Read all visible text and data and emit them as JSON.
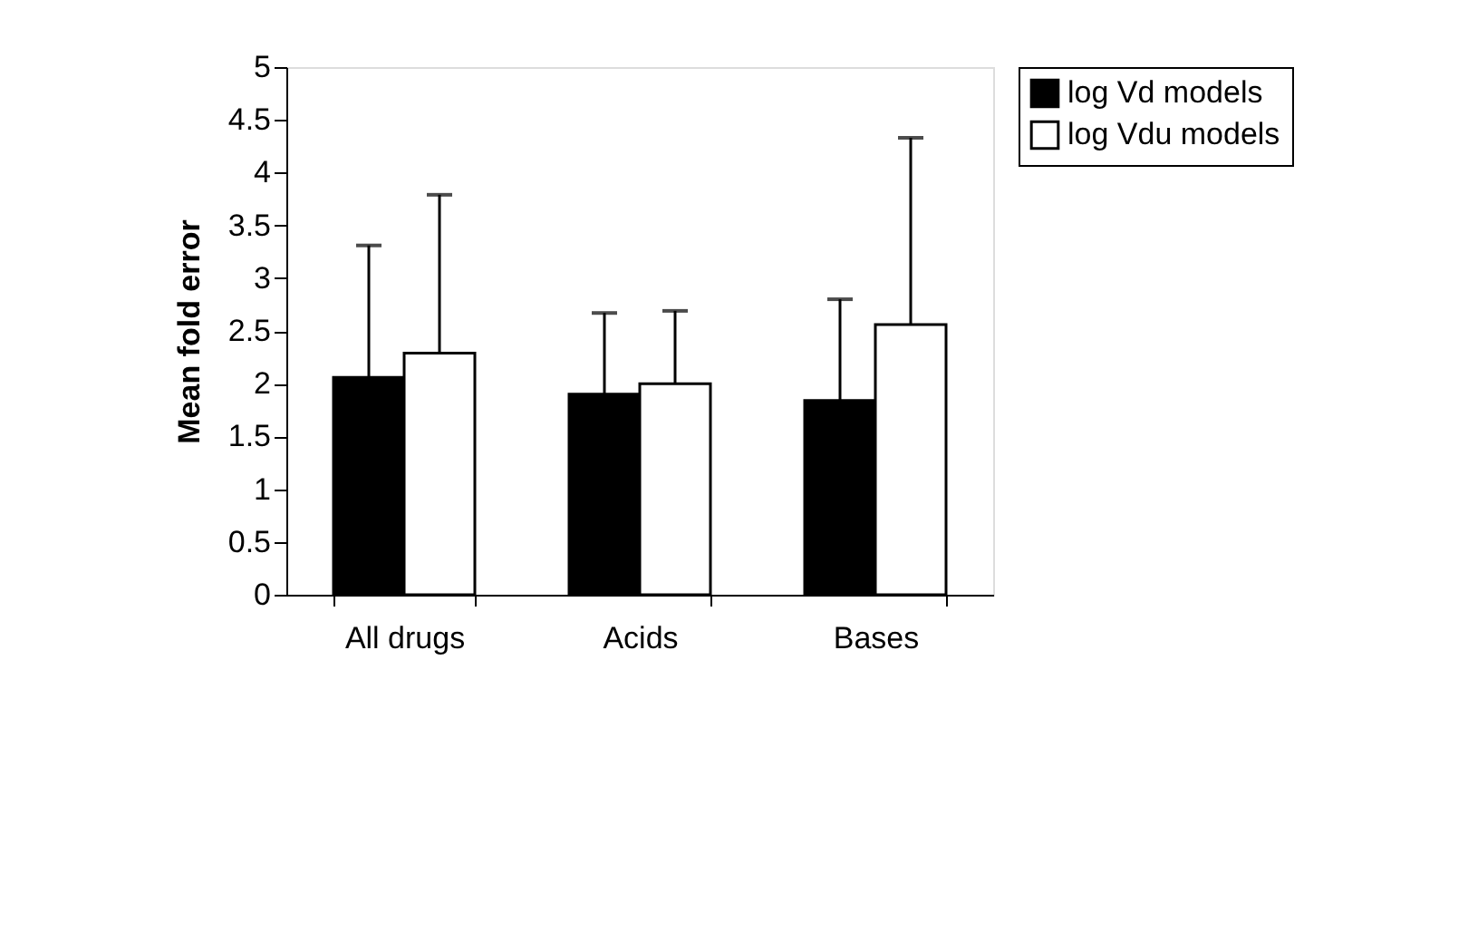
{
  "chart_data": {
    "type": "bar",
    "ylabel": "Mean fold error",
    "categories": [
      "All drugs",
      "Acids",
      "Bases"
    ],
    "series": [
      {
        "name": "log Vd models",
        "color": "#000000",
        "values": [
          2.06,
          1.9,
          1.84
        ],
        "errors": [
          [
            2.06,
            3.31
          ],
          [
            1.9,
            2.67
          ],
          [
            1.84,
            2.8
          ]
        ]
      },
      {
        "name": "log Vdu models",
        "color": "#ffffff",
        "values": [
          2.29,
          2.0,
          2.56
        ],
        "errors": [
          [
            2.29,
            3.79
          ],
          [
            2.0,
            2.69
          ],
          [
            2.56,
            4.33
          ]
        ]
      }
    ],
    "ylim": [
      0,
      5
    ],
    "yticks": [
      0,
      0.5,
      1,
      1.5,
      2,
      2.5,
      3,
      3.5,
      4,
      4.5,
      5
    ],
    "grid": false,
    "legend": "right"
  }
}
